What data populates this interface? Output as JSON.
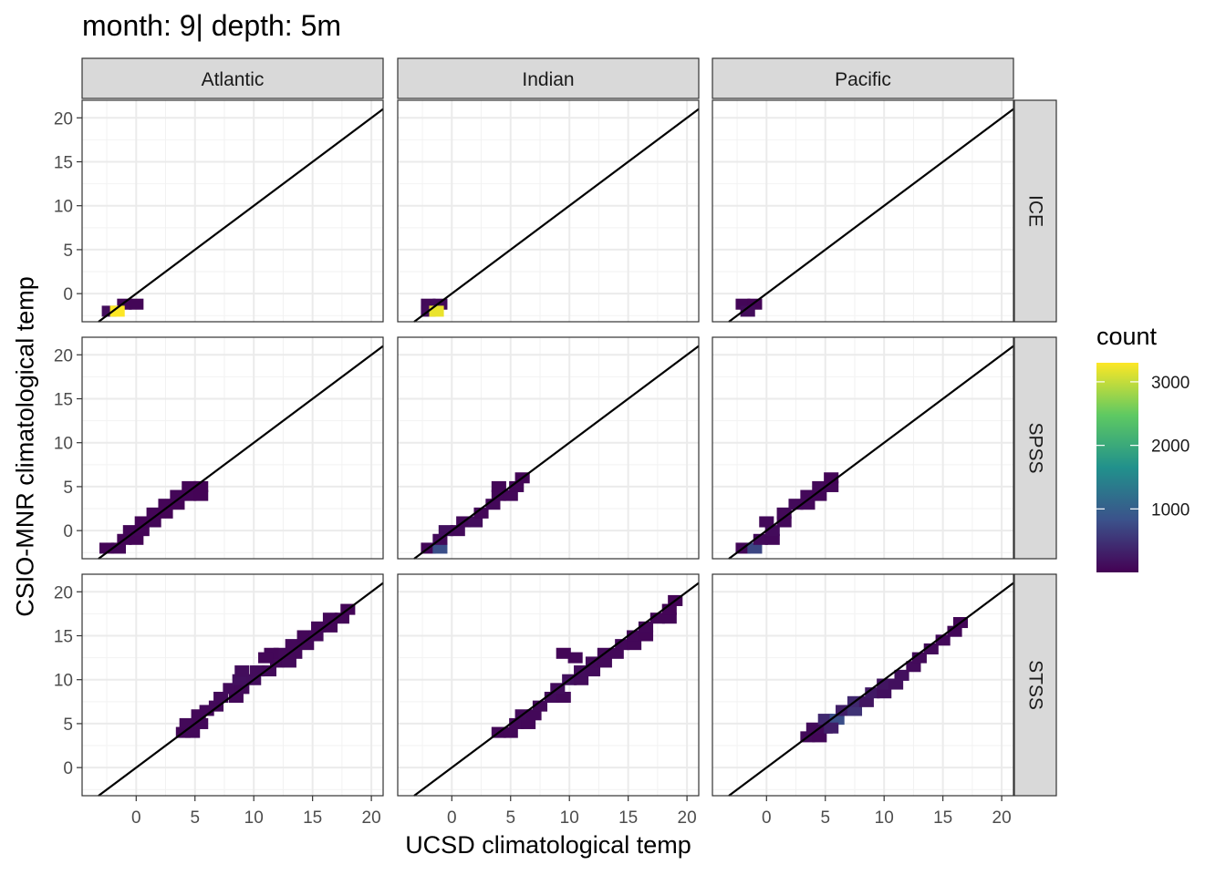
{
  "chart_data": {
    "type": "heatmap",
    "title": "month: 9| depth: 5m",
    "xlabel": "UCSD climatological temp",
    "ylabel": "CSIO-MNR climatological temp",
    "facet_cols": [
      "Atlantic",
      "Indian",
      "Pacific"
    ],
    "facet_rows": [
      "ICE",
      "SPSS",
      "STSS"
    ],
    "xlim": [
      -4.6,
      21
    ],
    "ylim": [
      -3.2,
      22
    ],
    "x_ticks": [
      0,
      5,
      10,
      15,
      20
    ],
    "y_ticks": [
      0,
      5,
      10,
      15,
      20
    ],
    "reference_line": "y = x",
    "grid": true,
    "bin_width": 1.25,
    "legend": {
      "title": "count",
      "ticks": [
        1000,
        2000,
        3000
      ],
      "range": [
        1,
        3300
      ],
      "placement": "right",
      "palette": [
        "#440154",
        "#3b528b",
        "#21918c",
        "#5ec962",
        "#fde725"
      ]
    },
    "panels": [
      {
        "col": "Atlantic",
        "row": "ICE",
        "bins": [
          [
            -1,
            -1.2,
            60
          ],
          [
            0,
            -1.2,
            50
          ],
          [
            -2.3,
            -2,
            120
          ],
          [
            -1.6,
            -2,
            3300
          ]
        ]
      },
      {
        "col": "Indian",
        "row": "ICE",
        "bins": [
          [
            -2,
            -1.2,
            80
          ],
          [
            -1,
            -1.2,
            90
          ],
          [
            -2,
            -2,
            100
          ],
          [
            -1.3,
            -2,
            3200
          ]
        ]
      },
      {
        "col": "Pacific",
        "row": "ICE",
        "bins": [
          [
            -2,
            -1.2,
            50
          ],
          [
            -1,
            -1.2,
            45
          ],
          [
            -1.6,
            -2,
            110
          ]
        ]
      },
      {
        "col": "Atlantic",
        "row": "SPSS",
        "bins": [
          [
            -2.5,
            -2,
            30
          ],
          [
            -1.5,
            -2,
            50
          ],
          [
            -1,
            -1,
            40
          ],
          [
            0,
            -1,
            30
          ],
          [
            -0.5,
            0,
            50
          ],
          [
            0.5,
            0,
            40
          ],
          [
            0.5,
            1,
            30
          ],
          [
            1.5,
            1,
            50
          ],
          [
            1.5,
            2,
            40
          ],
          [
            2.5,
            2,
            30
          ],
          [
            2.5,
            3,
            40
          ],
          [
            3.5,
            3,
            30
          ],
          [
            3.5,
            4,
            50
          ],
          [
            4.5,
            4,
            40
          ],
          [
            4.5,
            5,
            40
          ],
          [
            5.5,
            5,
            30
          ],
          [
            5.5,
            4,
            30
          ]
        ]
      },
      {
        "col": "Indian",
        "row": "SPSS",
        "bins": [
          [
            -2,
            -2,
            60
          ],
          [
            -1,
            -2,
            800
          ],
          [
            -1,
            -1,
            90
          ],
          [
            -0.5,
            0,
            150
          ],
          [
            0.5,
            0,
            90
          ],
          [
            1,
            1,
            80
          ],
          [
            2,
            1,
            120
          ],
          [
            2.5,
            2,
            60
          ],
          [
            3.5,
            3,
            70
          ],
          [
            4,
            4,
            60
          ],
          [
            5,
            4,
            60
          ],
          [
            4,
            5,
            50
          ],
          [
            5.5,
            5,
            50
          ],
          [
            6,
            6,
            40
          ]
        ]
      },
      {
        "col": "Pacific",
        "row": "SPSS",
        "bins": [
          [
            -2,
            -2,
            60
          ],
          [
            -1,
            -2,
            700
          ],
          [
            -0.5,
            -1,
            90
          ],
          [
            0.5,
            -1,
            70
          ],
          [
            0.5,
            0,
            100
          ],
          [
            0,
            1,
            80
          ],
          [
            1.5,
            1,
            70
          ],
          [
            1.5,
            2,
            80
          ],
          [
            2.5,
            3,
            90
          ],
          [
            3.5,
            3,
            70
          ],
          [
            3.5,
            4,
            70
          ],
          [
            4.5,
            4,
            60
          ],
          [
            4.5,
            5,
            80
          ],
          [
            5.5,
            5,
            60
          ],
          [
            5.5,
            6,
            40
          ]
        ]
      },
      {
        "col": "Atlantic",
        "row": "STSS",
        "bins": [
          [
            4,
            4,
            60
          ],
          [
            4.8,
            4,
            70
          ],
          [
            4.3,
            5,
            80
          ],
          [
            5.5,
            5,
            70
          ],
          [
            5.3,
            6,
            60
          ],
          [
            6,
            6.5,
            70
          ],
          [
            6.8,
            7,
            80
          ],
          [
            7.2,
            8,
            90
          ],
          [
            8.5,
            8,
            70
          ],
          [
            8,
            9,
            100
          ],
          [
            9,
            9,
            90
          ],
          [
            8.8,
            10,
            150
          ],
          [
            10,
            10,
            130
          ],
          [
            9,
            11,
            120
          ],
          [
            10.3,
            11,
            110
          ],
          [
            11.3,
            11,
            90
          ],
          [
            12,
            12,
            80
          ],
          [
            13,
            12,
            90
          ],
          [
            12.3,
            13,
            80
          ],
          [
            13.5,
            13,
            70
          ],
          [
            13.3,
            14,
            70
          ],
          [
            14.5,
            14,
            80
          ],
          [
            14.3,
            15,
            60
          ],
          [
            15.3,
            15,
            70
          ],
          [
            15.5,
            16,
            60
          ],
          [
            16.5,
            16,
            50
          ],
          [
            16.5,
            17,
            60
          ],
          [
            17.5,
            17,
            50
          ],
          [
            18,
            18,
            40
          ],
          [
            11.5,
            13,
            60
          ],
          [
            11,
            12.5,
            60
          ]
        ]
      },
      {
        "col": "Indian",
        "row": "STSS",
        "bins": [
          [
            4,
            4,
            60
          ],
          [
            5,
            4,
            60
          ],
          [
            5.5,
            5,
            70
          ],
          [
            6.5,
            5,
            60
          ],
          [
            6,
            6,
            90
          ],
          [
            7,
            6,
            70
          ],
          [
            7.5,
            7,
            80
          ],
          [
            8.5,
            8,
            100
          ],
          [
            9.5,
            8,
            80
          ],
          [
            9,
            9,
            120
          ],
          [
            10,
            10,
            150
          ],
          [
            11,
            10,
            110
          ],
          [
            11,
            11,
            120
          ],
          [
            12,
            11,
            100
          ],
          [
            12,
            12,
            90
          ],
          [
            13,
            12,
            80
          ],
          [
            13,
            13,
            80
          ],
          [
            14,
            13,
            70
          ],
          [
            14.5,
            14,
            70
          ],
          [
            15.5,
            14,
            60
          ],
          [
            15.5,
            15,
            60
          ],
          [
            16.5,
            15,
            50
          ],
          [
            16.5,
            16,
            60
          ],
          [
            17.5,
            17,
            50
          ],
          [
            18.5,
            17,
            50
          ],
          [
            18.5,
            18,
            40
          ],
          [
            19,
            19,
            30
          ],
          [
            10.5,
            12.5,
            60
          ],
          [
            9.5,
            13,
            50
          ]
        ]
      },
      {
        "col": "Pacific",
        "row": "STSS",
        "bins": [
          [
            3.5,
            3.5,
            80
          ],
          [
            4.5,
            3.5,
            60
          ],
          [
            4,
            4.5,
            100
          ],
          [
            5,
            4.5,
            90
          ],
          [
            5,
            5.5,
            400
          ],
          [
            6,
            5.5,
            800
          ],
          [
            6.5,
            6.5,
            300
          ],
          [
            7.5,
            6.5,
            500
          ],
          [
            7.5,
            7.5,
            400
          ],
          [
            8.5,
            7.5,
            200
          ],
          [
            9,
            8.5,
            250
          ],
          [
            10,
            8.5,
            150
          ],
          [
            10,
            9.5,
            200
          ],
          [
            11,
            9.5,
            150
          ],
          [
            11.5,
            10.5,
            150
          ],
          [
            12.5,
            11.5,
            100
          ],
          [
            13,
            12.5,
            90
          ],
          [
            14,
            13.5,
            80
          ],
          [
            15,
            14.5,
            70
          ],
          [
            16,
            15.5,
            60
          ],
          [
            16.5,
            16.5,
            50
          ],
          [
            5.5,
            4.5,
            300
          ]
        ]
      }
    ]
  }
}
